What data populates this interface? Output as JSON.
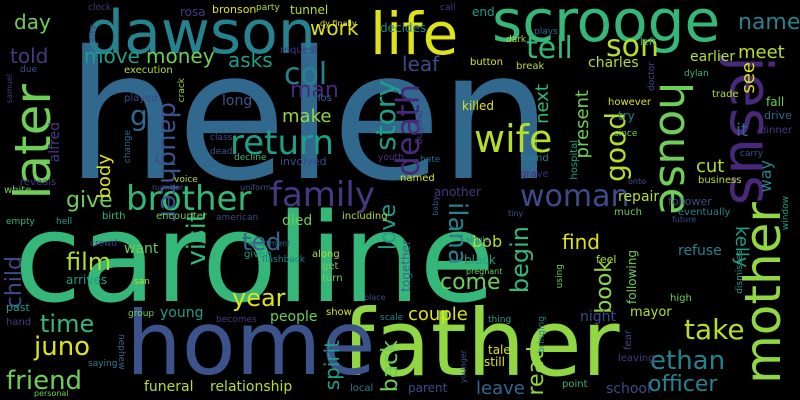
{
  "words": [
    {
      "text": "helen",
      "color": "#31688e"
    },
    {
      "text": "caroline",
      "color": "#35b779"
    },
    {
      "text": "father",
      "color": "#90d743"
    },
    {
      "text": "home",
      "color": "#3b528b"
    },
    {
      "text": "dawson",
      "color": "#26828e"
    },
    {
      "text": "scrooge",
      "color": "#35b779"
    },
    {
      "text": "life",
      "color": "#dde318"
    },
    {
      "text": "jesus",
      "color": "#482878"
    },
    {
      "text": "mother",
      "color": "#90d743"
    },
    {
      "text": "house",
      "color": "#6ece58"
    },
    {
      "text": "later",
      "color": "#6ece58"
    },
    {
      "text": "brother",
      "color": "#35b779"
    },
    {
      "text": "family",
      "color": "#443983"
    },
    {
      "text": "wife",
      "color": "#b5de2b"
    },
    {
      "text": "woman",
      "color": "#3e4a89"
    },
    {
      "text": "return",
      "color": "#1f9e89"
    },
    {
      "text": "death",
      "color": "#482878"
    },
    {
      "text": "story",
      "color": "#1f9e89"
    },
    {
      "text": "son",
      "color": "#b5de2b"
    },
    {
      "text": "tell",
      "color": "#35b779"
    },
    {
      "text": "col",
      "color": "#26828e"
    },
    {
      "text": "man",
      "color": "#482878"
    },
    {
      "text": "go",
      "color": "#31688e"
    },
    {
      "text": "daughter",
      "color": "#3b528b"
    },
    {
      "text": "good",
      "color": "#b5de2b"
    },
    {
      "text": "name",
      "color": "#26828e"
    },
    {
      "text": "work",
      "color": "#dde318"
    },
    {
      "text": "day",
      "color": "#6ece58"
    },
    {
      "text": "move",
      "color": "#1f9e89"
    },
    {
      "text": "money",
      "color": "#6ece58"
    },
    {
      "text": "asks",
      "color": "#1f9e89"
    },
    {
      "text": "told",
      "color": "#443983"
    },
    {
      "text": "leaf",
      "color": "#3e4a89"
    },
    {
      "text": "visit",
      "color": "#35b779"
    },
    {
      "text": "give",
      "color": "#6ece58"
    },
    {
      "text": "body",
      "color": "#dde318"
    },
    {
      "text": "film",
      "color": "#b5de2b"
    },
    {
      "text": "ted",
      "color": "#31688e"
    },
    {
      "text": "year",
      "color": "#dde318"
    },
    {
      "text": "time",
      "color": "#35b779"
    },
    {
      "text": "juno",
      "color": "#dde318"
    },
    {
      "text": "friend",
      "color": "#6ece58"
    },
    {
      "text": "child",
      "color": "#3e4a89"
    },
    {
      "text": "ilana",
      "color": "#26828e"
    },
    {
      "text": "love",
      "color": "#1f9e89"
    },
    {
      "text": "come",
      "color": "#6ece58"
    },
    {
      "text": "bob",
      "color": "#b5de2b"
    },
    {
      "text": "begin",
      "color": "#35b779"
    },
    {
      "text": "find",
      "color": "#dde318"
    },
    {
      "text": "book",
      "color": "#90d743"
    },
    {
      "text": "take",
      "color": "#b5de2b"
    },
    {
      "text": "ethan",
      "color": "#26828e"
    },
    {
      "text": "officer",
      "color": "#26828e"
    },
    {
      "text": "spirit",
      "color": "#1f9e89"
    },
    {
      "text": "back",
      "color": "#6ece58"
    },
    {
      "text": "read",
      "color": "#90d743"
    },
    {
      "text": "leave",
      "color": "#31688e"
    },
    {
      "text": "couple",
      "color": "#dde318"
    },
    {
      "text": "people",
      "color": "#6ece58"
    },
    {
      "text": "relationship",
      "color": "#b5de2b"
    },
    {
      "text": "funeral",
      "color": "#b5de2b"
    },
    {
      "text": "young",
      "color": "#1f9e89"
    },
    {
      "text": "want",
      "color": "#6ece58"
    },
    {
      "text": "next",
      "color": "#35b779"
    },
    {
      "text": "present",
      "color": "#6ece58"
    },
    {
      "text": "meet",
      "color": "#b5de2b"
    },
    {
      "text": "see",
      "color": "#dde318"
    },
    {
      "text": "it",
      "color": "#31688e"
    },
    {
      "text": "way",
      "color": "#26828e"
    },
    {
      "text": "cut",
      "color": "#b5de2b"
    },
    {
      "text": "repair",
      "color": "#b5de2b"
    },
    {
      "text": "earlier",
      "color": "#b5de2b"
    },
    {
      "text": "charles",
      "color": "#b5de2b"
    },
    {
      "text": "kelly",
      "color": "#1f9e89"
    },
    {
      "text": "mayor",
      "color": "#b5de2b"
    },
    {
      "text": "school",
      "color": "#3e4a89"
    },
    {
      "text": "night",
      "color": "#3e4a89"
    },
    {
      "text": "refuse",
      "color": "#26828e"
    },
    {
      "text": "long",
      "color": "#3b528b"
    },
    {
      "text": "make",
      "color": "#90d743"
    },
    {
      "text": "died",
      "color": "#6ece58"
    },
    {
      "text": "alfred",
      "color": "#443983"
    },
    {
      "text": "bronson",
      "color": "#dde318"
    },
    {
      "text": "tunnel",
      "color": "#b5de2b"
    },
    {
      "text": "decides",
      "color": "#26828e"
    },
    {
      "text": "end",
      "color": "#1f9e89"
    },
    {
      "text": "rosa",
      "color": "#443983"
    },
    {
      "text": "killed",
      "color": "#dde318"
    },
    {
      "text": "try",
      "color": "#26828e"
    },
    {
      "text": "fall",
      "color": "#6ece58"
    },
    {
      "text": "drive",
      "color": "#31688e"
    },
    {
      "text": "trade",
      "color": "#b5de2b"
    },
    {
      "text": "dinner",
      "color": "#443983"
    },
    {
      "text": "business",
      "color": "#b5de2b"
    },
    {
      "text": "eventually",
      "color": "#26828e"
    },
    {
      "text": "follower",
      "color": "#3e4a89"
    },
    {
      "text": "following",
      "color": "#6ece58"
    },
    {
      "text": "high",
      "color": "#6ece58"
    },
    {
      "text": "feel",
      "color": "#b5de2b"
    },
    {
      "text": "tale",
      "color": "#dde318"
    },
    {
      "text": "still",
      "color": "#dde318"
    },
    {
      "text": "black",
      "color": "#1f9e89"
    },
    {
      "text": "together",
      "color": "#31688e"
    },
    {
      "text": "another",
      "color": "#443983"
    },
    {
      "text": "including",
      "color": "#b5de2b"
    },
    {
      "text": "involved",
      "color": "#3e4a89"
    },
    {
      "text": "carlos",
      "color": "#31688e"
    },
    {
      "text": "given",
      "color": "#1f9e89"
    },
    {
      "text": "along",
      "color": "#b5de2b"
    },
    {
      "text": "get",
      "color": "#6ece58"
    },
    {
      "text": "turn",
      "color": "#6ece58"
    },
    {
      "text": "show",
      "color": "#dde318"
    },
    {
      "text": "local",
      "color": "#26828e"
    },
    {
      "text": "parent",
      "color": "#3e4a89"
    },
    {
      "text": "point",
      "color": "#35b779"
    },
    {
      "text": "leaving",
      "color": "#443983"
    },
    {
      "text": "found",
      "color": "#26828e"
    },
    {
      "text": "grave",
      "color": "#482878"
    },
    {
      "text": "named",
      "color": "#dde318"
    },
    {
      "text": "hospital",
      "color": "#1f9e89"
    },
    {
      "text": "youth",
      "color": "#443983"
    },
    {
      "text": "hate",
      "color": "#31688e"
    },
    {
      "text": "reading",
      "color": "#443983"
    },
    {
      "text": "button",
      "color": "#dde318"
    },
    {
      "text": "break",
      "color": "#b5de2b"
    },
    {
      "text": "left",
      "color": "#35b779"
    },
    {
      "text": "however",
      "color": "#dde318"
    },
    {
      "text": "since",
      "color": "#6ece58"
    },
    {
      "text": "carry",
      "color": "#3b528b"
    },
    {
      "text": "plays",
      "color": "#31688e"
    },
    {
      "text": "execution",
      "color": "#b5de2b"
    },
    {
      "text": "played",
      "color": "#3e4a89"
    },
    {
      "text": "crack",
      "color": "#90d743"
    },
    {
      "text": "request",
      "color": "#443983"
    },
    {
      "text": "dark",
      "color": "#b5de2b"
    },
    {
      "text": "dy finally",
      "color": "#dde318"
    },
    {
      "text": "party",
      "color": "#b5de2b"
    },
    {
      "text": "call",
      "color": "#443983"
    },
    {
      "text": "clock",
      "color": "#443983"
    },
    {
      "text": "dylan",
      "color": "#35b779"
    },
    {
      "text": "class",
      "color": "#3e4a89"
    },
    {
      "text": "dead",
      "color": "#3b528b"
    },
    {
      "text": "decline",
      "color": "#35b779"
    },
    {
      "text": "change",
      "color": "#31688e"
    },
    {
      "text": "voice",
      "color": "#b5de2b"
    },
    {
      "text": "number",
      "color": "#3b528b"
    },
    {
      "text": "uniform",
      "color": "#3b528b"
    },
    {
      "text": "reveals",
      "color": "#443983"
    },
    {
      "text": "white",
      "color": "#6ece58"
    },
    {
      "text": "empty",
      "color": "#35b779"
    },
    {
      "text": "hell",
      "color": "#1f9e89"
    },
    {
      "text": "birth",
      "color": "#35b779"
    },
    {
      "text": "encounter",
      "color": "#6ece58"
    },
    {
      "text": "american",
      "color": "#3e4a89"
    },
    {
      "text": "crowd",
      "color": "#443983"
    },
    {
      "text": "apartment",
      "color": "#31688e"
    },
    {
      "text": "flashback",
      "color": "#26828e"
    },
    {
      "text": "single",
      "color": "#26828e"
    },
    {
      "text": "pregnant",
      "color": "#6ece58"
    },
    {
      "text": "using",
      "color": "#6ece58"
    },
    {
      "text": "scale",
      "color": "#26828e"
    },
    {
      "text": "place",
      "color": "#3e4a89"
    },
    {
      "text": "thing",
      "color": "#1f9e89"
    },
    {
      "text": "bringing",
      "color": "#26828e"
    },
    {
      "text": "arrives",
      "color": "#1f9e89"
    },
    {
      "text": "san",
      "color": "#b5de2b"
    },
    {
      "text": "past",
      "color": "#1f9e89"
    },
    {
      "text": "hand",
      "color": "#443983"
    },
    {
      "text": "group",
      "color": "#6ece58"
    },
    {
      "text": "becomes",
      "color": "#443983"
    },
    {
      "text": "saying",
      "color": "#26828e"
    },
    {
      "text": "nephew",
      "color": "#31688e"
    },
    {
      "text": "personal",
      "color": "#6ece58"
    },
    {
      "text": "younger",
      "color": "#3b528b"
    },
    {
      "text": "much",
      "color": "#6ece58"
    },
    {
      "text": "fear",
      "color": "#3e4a89"
    },
    {
      "text": "future",
      "color": "#3e4a89"
    },
    {
      "text": "window",
      "color": "#1f9e89"
    },
    {
      "text": "dismisses",
      "color": "#1f9e89"
    },
    {
      "text": "date",
      "color": "#443983"
    },
    {
      "text": "due",
      "color": "#3b528b"
    },
    {
      "text": "samuel",
      "color": "#443983"
    },
    {
      "text": "doctor",
      "color": "#3e4a89"
    },
    {
      "text": "onto",
      "color": "#3b528b"
    },
    {
      "text": "baby",
      "color": "#3b528b"
    },
    {
      "text": "tiny",
      "color": "#3b528b"
    }
  ]
}
